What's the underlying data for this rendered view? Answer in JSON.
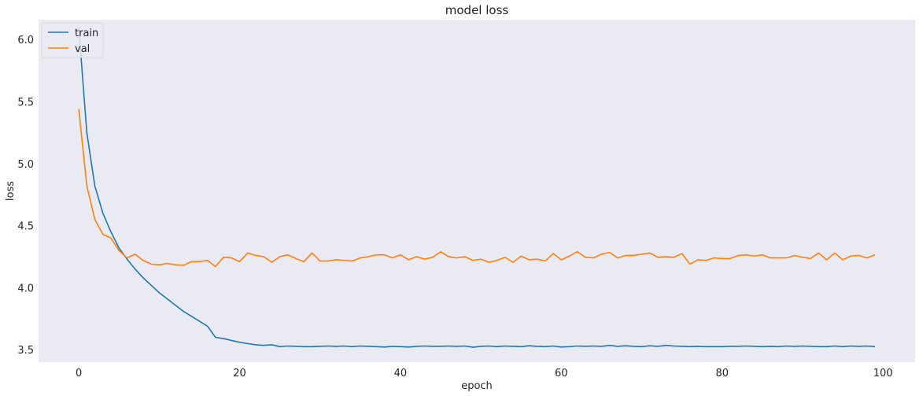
{
  "chart_data": {
    "type": "line",
    "title": "model loss",
    "xlabel": "epoch",
    "ylabel": "loss",
    "xlim": [
      -5,
      104
    ],
    "ylim": [
      3.4,
      6.16
    ],
    "xticks": [
      0,
      20,
      40,
      60,
      80,
      100
    ],
    "xtick_labels": [
      "0",
      "20",
      "40",
      "60",
      "80",
      "100"
    ],
    "yticks": [
      3.5,
      4.0,
      4.5,
      5.0,
      5.5,
      6.0
    ],
    "ytick_labels": [
      "3.5",
      "4.0",
      "4.5",
      "5.0",
      "5.5",
      "6.0"
    ],
    "grid": false,
    "legend_position": "top-left",
    "background": "#eaeaf2",
    "x": [
      0,
      1,
      2,
      3,
      4,
      5,
      6,
      7,
      8,
      9,
      10,
      11,
      12,
      13,
      14,
      15,
      16,
      17,
      18,
      19,
      20,
      21,
      22,
      23,
      24,
      25,
      26,
      27,
      28,
      29,
      30,
      31,
      32,
      33,
      34,
      35,
      36,
      37,
      38,
      39,
      40,
      41,
      42,
      43,
      44,
      45,
      46,
      47,
      48,
      49,
      50,
      51,
      52,
      53,
      54,
      55,
      56,
      57,
      58,
      59,
      60,
      61,
      62,
      63,
      64,
      65,
      66,
      67,
      68,
      69,
      70,
      71,
      72,
      73,
      74,
      75,
      76,
      77,
      78,
      79,
      80,
      81,
      82,
      83,
      84,
      85,
      86,
      87,
      88,
      89,
      90,
      91,
      92,
      93,
      94,
      95,
      96,
      97,
      98,
      99
    ],
    "series": [
      {
        "name": "train",
        "color": "#1f77b4",
        "values": [
          6.1,
          5.25,
          4.82,
          4.6,
          4.45,
          4.32,
          4.23,
          4.15,
          4.08,
          4.02,
          3.96,
          3.91,
          3.86,
          3.81,
          3.77,
          3.73,
          3.69,
          3.6,
          3.59,
          3.575,
          3.56,
          3.55,
          3.54,
          3.535,
          3.54,
          3.525,
          3.53,
          3.527,
          3.525,
          3.525,
          3.527,
          3.53,
          3.527,
          3.53,
          3.525,
          3.53,
          3.527,
          3.525,
          3.522,
          3.527,
          3.525,
          3.522,
          3.527,
          3.53,
          3.527,
          3.527,
          3.53,
          3.527,
          3.53,
          3.52,
          3.527,
          3.53,
          3.525,
          3.53,
          3.527,
          3.525,
          3.532,
          3.527,
          3.525,
          3.53,
          3.522,
          3.525,
          3.53,
          3.527,
          3.53,
          3.527,
          3.535,
          3.527,
          3.532,
          3.527,
          3.525,
          3.532,
          3.527,
          3.535,
          3.53,
          3.527,
          3.525,
          3.527,
          3.525,
          3.525,
          3.525,
          3.527,
          3.527,
          3.53,
          3.527,
          3.525,
          3.527,
          3.525,
          3.53,
          3.527,
          3.53,
          3.527,
          3.525,
          3.525,
          3.53,
          3.525,
          3.53,
          3.527,
          3.53,
          3.525
        ]
      },
      {
        "name": "val",
        "color": "#ff7f0e",
        "values": [
          5.44,
          4.82,
          4.55,
          4.43,
          4.4,
          4.3,
          4.24,
          4.27,
          4.22,
          4.19,
          4.185,
          4.195,
          4.185,
          4.18,
          4.21,
          4.21,
          4.22,
          4.17,
          4.245,
          4.24,
          4.21,
          4.28,
          4.26,
          4.25,
          4.205,
          4.25,
          4.265,
          4.235,
          4.21,
          4.28,
          4.215,
          4.215,
          4.225,
          4.22,
          4.215,
          4.24,
          4.25,
          4.265,
          4.265,
          4.24,
          4.265,
          4.225,
          4.25,
          4.23,
          4.245,
          4.29,
          4.25,
          4.24,
          4.25,
          4.22,
          4.23,
          4.205,
          4.22,
          4.245,
          4.205,
          4.255,
          4.225,
          4.23,
          4.215,
          4.275,
          4.225,
          4.255,
          4.29,
          4.245,
          4.24,
          4.27,
          4.285,
          4.24,
          4.26,
          4.26,
          4.27,
          4.28,
          4.245,
          4.25,
          4.245,
          4.275,
          4.19,
          4.225,
          4.22,
          4.24,
          4.235,
          4.235,
          4.26,
          4.265,
          4.255,
          4.265,
          4.24,
          4.24,
          4.24,
          4.26,
          4.245,
          4.235,
          4.28,
          4.225,
          4.28,
          4.225,
          4.255,
          4.26,
          4.24,
          4.265
        ]
      }
    ]
  }
}
